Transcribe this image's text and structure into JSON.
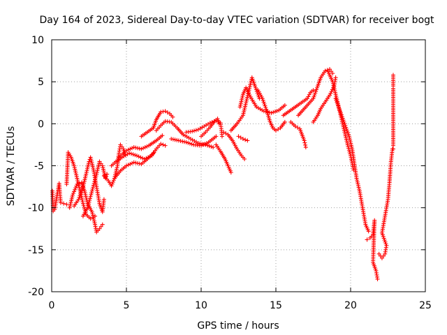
{
  "chart_data": {
    "type": "scatter",
    "title": "Day 164 of 2023, Sidereal Day-to-day VTEC variation (SDTVAR) for receiver bogt",
    "xlabel": "GPS time / hours",
    "ylabel": "SDTVAR / TECUs",
    "xlim": [
      0,
      25
    ],
    "ylim": [
      -20,
      10
    ],
    "xticks": [
      "0",
      "5",
      "10",
      "15",
      "20",
      "25"
    ],
    "yticks": [
      "-20",
      "-15",
      "-10",
      "-5",
      "0",
      "5",
      "10"
    ],
    "grid": true,
    "marker": "plus",
    "color": "#ff0000",
    "series": [
      {
        "values": [
          [
            0.05,
            -8.0
          ],
          [
            0.1,
            -10.4
          ],
          [
            0.2,
            -10.2
          ],
          [
            0.5,
            -7.1
          ],
          [
            0.6,
            -9.4
          ],
          [
            0.8,
            -9.5
          ],
          [
            1.0,
            -9.6
          ]
        ]
      },
      {
        "values": [
          [
            1.0,
            -7.2
          ],
          [
            1.1,
            -3.4
          ],
          [
            1.3,
            -4.0
          ],
          [
            1.5,
            -5.0
          ],
          [
            1.7,
            -6.5
          ],
          [
            1.9,
            -8.0
          ],
          [
            2.1,
            -9.5
          ],
          [
            2.3,
            -10.8
          ],
          [
            2.6,
            -11.3
          ],
          [
            2.9,
            -11.0
          ]
        ]
      },
      {
        "values": [
          [
            1.2,
            -10.0
          ],
          [
            1.4,
            -8.5
          ],
          [
            1.7,
            -7.2
          ],
          [
            2.0,
            -7.0
          ],
          [
            2.2,
            -8.0
          ],
          [
            2.4,
            -9.5
          ],
          [
            2.7,
            -10.5
          ],
          [
            2.9,
            -12.0
          ],
          [
            3.0,
            -12.9
          ],
          [
            3.2,
            -12.5
          ],
          [
            3.4,
            -12.0
          ]
        ]
      },
      {
        "values": [
          [
            1.5,
            -9.8
          ],
          [
            1.8,
            -9.0
          ],
          [
            2.1,
            -7.5
          ],
          [
            2.3,
            -6.0
          ],
          [
            2.5,
            -4.5
          ],
          [
            2.6,
            -4.0
          ],
          [
            2.8,
            -5.5
          ],
          [
            3.0,
            -7.5
          ],
          [
            3.2,
            -9.5
          ],
          [
            3.4,
            -10.5
          ],
          [
            3.5,
            -9.0
          ]
        ]
      },
      {
        "values": [
          [
            2.1,
            -11.0
          ],
          [
            2.4,
            -10.0
          ],
          [
            2.7,
            -8.0
          ],
          [
            3.0,
            -6.0
          ],
          [
            3.2,
            -4.5
          ],
          [
            3.4,
            -5.0
          ],
          [
            3.6,
            -6.5
          ],
          [
            3.7,
            -6.0
          ]
        ]
      },
      {
        "values": [
          [
            3.5,
            -6.2
          ],
          [
            3.8,
            -6.8
          ],
          [
            4.0,
            -7.4
          ],
          [
            4.2,
            -6.5
          ],
          [
            4.4,
            -5.0
          ],
          [
            4.5,
            -3.5
          ],
          [
            4.6,
            -2.5
          ],
          [
            4.8,
            -3.0
          ],
          [
            4.9,
            -3.6
          ]
        ]
      },
      {
        "values": [
          [
            4.0,
            -5.0
          ],
          [
            4.3,
            -4.5
          ],
          [
            4.7,
            -4.0
          ],
          [
            5.2,
            -3.5
          ],
          [
            5.7,
            -3.8
          ],
          [
            6.2,
            -4.2
          ],
          [
            6.7,
            -3.8
          ],
          [
            7.0,
            -3.0
          ],
          [
            7.3,
            -2.4
          ],
          [
            7.6,
            -2.6
          ]
        ]
      },
      {
        "values": [
          [
            4.2,
            -6.5
          ],
          [
            4.6,
            -5.6
          ],
          [
            5.0,
            -5.0
          ],
          [
            5.5,
            -4.6
          ],
          [
            6.0,
            -4.8
          ],
          [
            6.4,
            -4.2
          ],
          [
            6.8,
            -3.5
          ]
        ]
      },
      {
        "values": [
          [
            4.5,
            -4.0
          ],
          [
            5.0,
            -3.2
          ],
          [
            5.5,
            -2.8
          ],
          [
            6.0,
            -3.0
          ],
          [
            6.5,
            -2.6
          ],
          [
            7.0,
            -2.0
          ],
          [
            7.4,
            -1.4
          ]
        ]
      },
      {
        "values": [
          [
            6.0,
            -1.5
          ],
          [
            6.4,
            -1.0
          ],
          [
            6.8,
            -0.5
          ],
          [
            7.0,
            0.5
          ],
          [
            7.3,
            1.4
          ],
          [
            7.6,
            1.5
          ],
          [
            7.9,
            1.2
          ],
          [
            8.1,
            0.8
          ]
        ]
      },
      {
        "values": [
          [
            7.0,
            -0.8
          ],
          [
            7.3,
            -0.2
          ],
          [
            7.6,
            0.3
          ],
          [
            8.0,
            0.2
          ],
          [
            8.4,
            -0.5
          ],
          [
            8.8,
            -1.3
          ],
          [
            9.3,
            -1.8
          ],
          [
            9.8,
            -2.3
          ],
          [
            10.3,
            -2.5
          ],
          [
            10.8,
            -2.8
          ]
        ]
      },
      {
        "values": [
          [
            8.0,
            -1.8
          ],
          [
            8.5,
            -2.0
          ],
          [
            9.0,
            -2.2
          ],
          [
            9.5,
            -2.5
          ],
          [
            10.0,
            -2.6
          ],
          [
            10.5,
            -2.2
          ],
          [
            11.0,
            -1.5
          ]
        ]
      },
      {
        "values": [
          [
            9.0,
            -1.0
          ],
          [
            9.4,
            -0.9
          ],
          [
            9.8,
            -0.7
          ],
          [
            10.2,
            -0.3
          ],
          [
            10.6,
            0.1
          ],
          [
            11.0,
            0.4
          ],
          [
            11.3,
            0.1
          ],
          [
            11.4,
            -1.5
          ]
        ]
      },
      {
        "values": [
          [
            10.0,
            -1.5
          ],
          [
            10.3,
            -1.0
          ],
          [
            10.6,
            -0.4
          ],
          [
            10.9,
            0.3
          ],
          [
            11.1,
            0.6
          ],
          [
            11.2,
            0.0
          ]
        ]
      },
      {
        "values": [
          [
            11.0,
            -2.5
          ],
          [
            11.3,
            -3.3
          ],
          [
            11.6,
            -4.2
          ],
          [
            11.8,
            -5.0
          ],
          [
            12.0,
            -5.8
          ]
        ]
      },
      {
        "values": [
          [
            11.5,
            -1.0
          ],
          [
            11.8,
            -1.3
          ],
          [
            12.1,
            -2.0
          ],
          [
            12.4,
            -3.0
          ],
          [
            12.7,
            -3.8
          ],
          [
            12.9,
            -4.2
          ]
        ]
      },
      {
        "values": [
          [
            12.0,
            -0.8
          ],
          [
            12.4,
            0.0
          ],
          [
            12.8,
            1.0
          ],
          [
            13.0,
            2.5
          ],
          [
            13.2,
            4.0
          ],
          [
            13.4,
            5.5
          ],
          [
            13.6,
            4.5
          ],
          [
            13.9,
            3.0
          ]
        ]
      },
      {
        "values": [
          [
            12.5,
            -1.5
          ],
          [
            12.8,
            -1.8
          ],
          [
            13.1,
            -2.0
          ]
        ]
      },
      {
        "values": [
          [
            12.6,
            2.0
          ],
          [
            12.8,
            3.5
          ],
          [
            13.0,
            4.3
          ],
          [
            13.3,
            3.2
          ],
          [
            13.7,
            2.0
          ],
          [
            14.2,
            1.5
          ],
          [
            14.7,
            1.3
          ],
          [
            15.2,
            1.6
          ],
          [
            15.6,
            2.2
          ]
        ]
      },
      {
        "values": [
          [
            13.8,
            4.0
          ],
          [
            14.1,
            3.0
          ],
          [
            14.4,
            1.5
          ],
          [
            14.6,
            0.3
          ],
          [
            14.8,
            -0.5
          ],
          [
            15.0,
            -0.8
          ],
          [
            15.3,
            -0.5
          ],
          [
            15.6,
            0.2
          ]
        ]
      },
      {
        "values": [
          [
            15.5,
            1.0
          ],
          [
            15.9,
            1.5
          ],
          [
            16.3,
            2.0
          ],
          [
            16.7,
            2.5
          ],
          [
            17.1,
            3.0
          ],
          [
            17.3,
            3.7
          ],
          [
            17.5,
            4.0
          ]
        ]
      },
      {
        "values": [
          [
            16.0,
            0.2
          ],
          [
            16.3,
            -0.3
          ],
          [
            16.6,
            -0.6
          ],
          [
            16.9,
            -2.0
          ],
          [
            17.0,
            -2.8
          ]
        ]
      },
      {
        "values": [
          [
            16.5,
            1.0
          ],
          [
            17.0,
            2.0
          ],
          [
            17.5,
            3.0
          ],
          [
            17.8,
            4.5
          ],
          [
            18.0,
            5.5
          ],
          [
            18.3,
            6.3
          ],
          [
            18.6,
            6.5
          ],
          [
            18.8,
            6.0
          ]
        ]
      },
      {
        "values": [
          [
            17.5,
            0.2
          ],
          [
            17.8,
            1.0
          ],
          [
            18.0,
            1.8
          ],
          [
            18.3,
            2.6
          ],
          [
            18.6,
            3.4
          ],
          [
            18.9,
            4.5
          ],
          [
            19.0,
            5.5
          ]
        ]
      },
      {
        "values": [
          [
            18.5,
            6.2
          ],
          [
            18.8,
            5.0
          ],
          [
            19.0,
            3.5
          ],
          [
            19.2,
            2.0
          ],
          [
            19.4,
            0.5
          ],
          [
            19.6,
            -1.0
          ],
          [
            19.8,
            -2.5
          ],
          [
            20.0,
            -3.8
          ],
          [
            20.2,
            -5.5
          ]
        ]
      },
      {
        "values": [
          [
            19.0,
            3.0
          ],
          [
            19.3,
            1.5
          ],
          [
            19.6,
            0.0
          ],
          [
            19.9,
            -1.5
          ],
          [
            20.1,
            -3.0
          ],
          [
            20.4,
            -6.5
          ],
          [
            20.6,
            -8.0
          ],
          [
            20.8,
            -10.0
          ],
          [
            21.0,
            -12.0
          ],
          [
            21.2,
            -12.8
          ]
        ]
      },
      {
        "values": [
          [
            21.1,
            -13.8
          ],
          [
            21.3,
            -13.6
          ],
          [
            21.5,
            -13.2
          ],
          [
            21.6,
            -11.5
          ],
          [
            21.5,
            -16.5
          ],
          [
            21.7,
            -17.5
          ],
          [
            21.8,
            -18.5
          ]
        ]
      },
      {
        "values": [
          [
            21.9,
            -15.5
          ],
          [
            22.1,
            -16.0
          ],
          [
            22.3,
            -15.5
          ],
          [
            22.4,
            -14.5
          ],
          [
            22.1,
            -13.0
          ],
          [
            22.3,
            -11.0
          ],
          [
            22.5,
            -9.0
          ],
          [
            22.6,
            -7.0
          ],
          [
            22.7,
            -4.5
          ],
          [
            22.8,
            -3.0
          ]
        ]
      },
      {
        "values": [
          [
            22.85,
            5.8
          ],
          [
            22.85,
            4.5
          ],
          [
            22.85,
            4.2
          ],
          [
            22.85,
            -2.6
          ],
          [
            22.85,
            -3.0
          ]
        ]
      }
    ]
  }
}
